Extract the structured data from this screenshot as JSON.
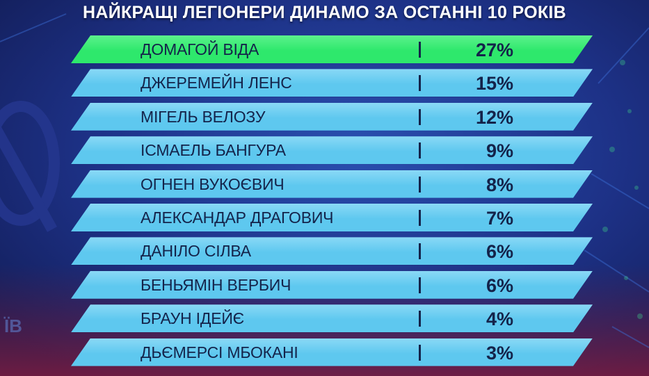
{
  "chart_data": {
    "type": "table",
    "title": "НАЙКРАЩІ ЛЕГІОНЕРИ ДИНАМО ЗА ОСТАННІ 10 РОКІВ",
    "rows": [
      {
        "name": "ДОМАГОЙ ВІДА",
        "value": 27,
        "label": "27%"
      },
      {
        "name": "ДЖЕРЕМЕЙН ЛЕНС",
        "value": 15,
        "label": "15%"
      },
      {
        "name": "МІГЕЛЬ ВЕЛОЗУ",
        "value": 12,
        "label": "12%"
      },
      {
        "name": "ІСМАЕЛЬ БАНГУРА",
        "value": 9,
        "label": "9%"
      },
      {
        "name": "ОГНЕН ВУКОЄВИЧ",
        "value": 8,
        "label": "8%"
      },
      {
        "name": "АЛЕКСАНДАР ДРАГОВИЧ",
        "value": 7,
        "label": "7%"
      },
      {
        "name": "ДАНІЛО СІЛВА",
        "value": 6,
        "label": "6%"
      },
      {
        "name": "БЕНЬЯМІН ВЕРБИЧ",
        "value": 6,
        "label": "6%"
      },
      {
        "name": "БРАУН ІДЕЙЄ",
        "value": 4,
        "label": "4%"
      },
      {
        "name": "ДЬЄМЕРСІ МБОКАНІ",
        "value": 3,
        "label": "3%"
      }
    ],
    "highlight_index": 0
  },
  "background": {
    "logo_text": "ЇВ"
  },
  "colors": {
    "highlight_band": "#2ee86c",
    "highlight_band_light": "#5cf28c",
    "band": "#5ec8ef",
    "band_light": "#8ad9f6",
    "text": "#14234a",
    "background": "#1a2a6b"
  }
}
